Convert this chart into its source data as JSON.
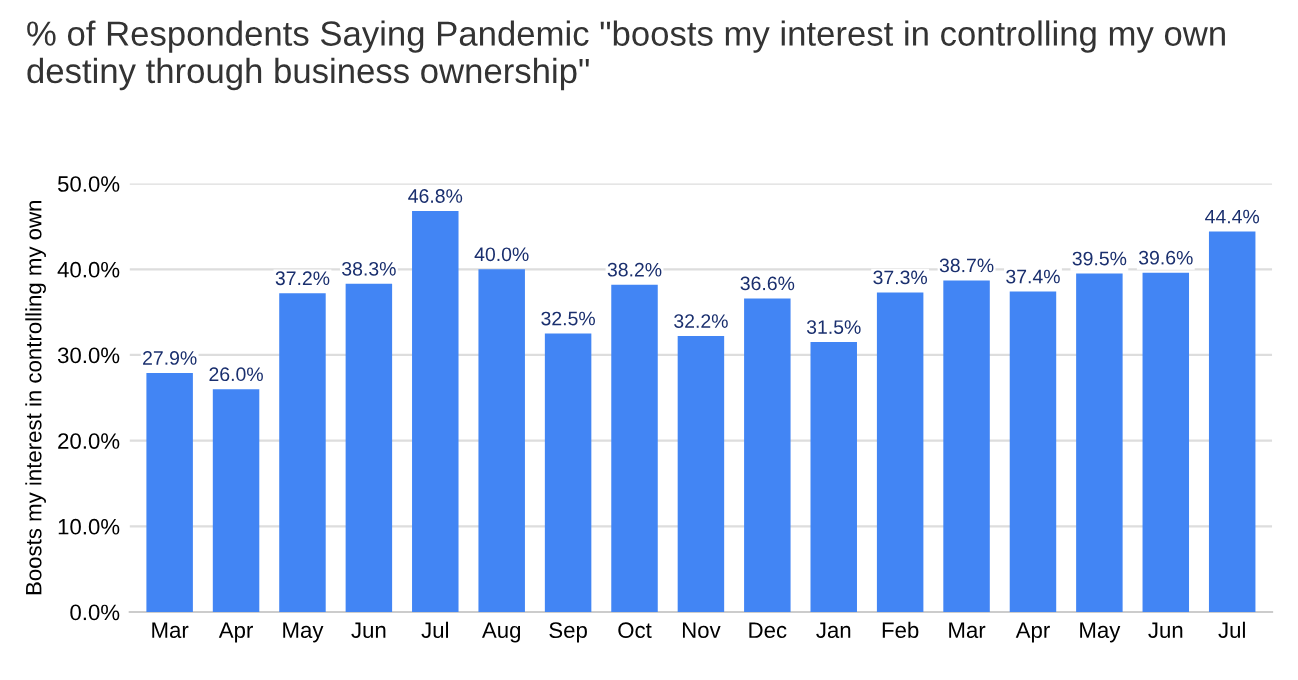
{
  "chart_data": {
    "type": "bar",
    "title": "% of Respondents Saying Pandemic \"boosts my interest in controlling my own destiny through business ownership\"",
    "ylabel": "Boosts my interest in controlling my own",
    "categories": [
      "Mar",
      "Apr",
      "May",
      "Jun",
      "Jul",
      "Aug",
      "Sep",
      "Oct",
      "Nov",
      "Dec",
      "Jan",
      "Feb",
      "Mar",
      "Apr",
      "May",
      "Jun",
      "Jul"
    ],
    "values": [
      27.9,
      26.0,
      37.2,
      38.3,
      46.8,
      40.0,
      32.5,
      38.2,
      32.2,
      36.6,
      31.5,
      37.3,
      38.7,
      37.4,
      39.5,
      39.6,
      44.4
    ],
    "value_labels": [
      "27.9%",
      "26.0%",
      "37.2%",
      "38.3%",
      "46.8%",
      "40.0%",
      "32.5%",
      "38.2%",
      "32.2%",
      "36.6%",
      "31.5%",
      "37.3%",
      "38.7%",
      "37.4%",
      "39.5%",
      "39.6%",
      "44.4%"
    ],
    "color": "#4285f4",
    "ylim": [
      0,
      50
    ],
    "yticks": [
      {
        "value": 0,
        "label": "0.0%"
      },
      {
        "value": 10,
        "label": "10.0%"
      },
      {
        "value": 20,
        "label": "20.0%"
      },
      {
        "value": 30,
        "label": "30.0%"
      },
      {
        "value": 40,
        "label": "40.0%"
      },
      {
        "value": 50,
        "label": "50.0%"
      }
    ],
    "grid": "y"
  }
}
